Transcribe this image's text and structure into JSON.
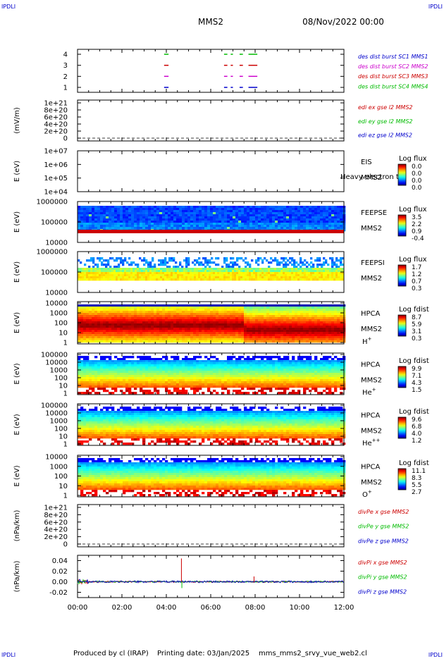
{
  "header": {
    "corner_tl": "IPDLI",
    "corner_tr": "IPDLI",
    "corner_bl": "IPDLI",
    "corner_br": "IPDLI",
    "spacecraft": "MMS2",
    "date": "08/Nov/2022 00:00"
  },
  "footer": {
    "producer": "Produced by cl (IRAP)",
    "print_date": "Printing date: 03/Jan/2025",
    "filename": "mms_mms2_srvy_vue_web2.cl"
  },
  "colors": {
    "blue": "#0000cc",
    "red": "#cc0000",
    "green": "#00bb00",
    "magenta": "#cc00cc"
  },
  "chart_data": [
    {
      "type": "line",
      "id": "burst",
      "ylim": [
        0.5,
        4.5
      ],
      "yticks": [
        "1",
        "2",
        "3",
        "4"
      ],
      "legend": [
        {
          "text": "des dist burst SC1 MMS1",
          "color": "#0000cc"
        },
        {
          "text": "des dist burst SC2 MMS2",
          "color": "#cc00cc"
        },
        {
          "text": "des dist burst SC3 MMS3",
          "color": "#cc0000"
        },
        {
          "text": "des dist burst SC4 MMS4",
          "color": "#00bb00"
        }
      ],
      "intervals_h": [
        [
          3.9,
          4.1
        ],
        [
          6.6,
          6.75
        ],
        [
          6.9,
          7.0
        ],
        [
          7.3,
          7.45
        ],
        [
          7.7,
          8.1
        ]
      ]
    },
    {
      "type": "line",
      "id": "edi",
      "ylabel": "(mV/m)",
      "yticks": [
        "0",
        "2e+20",
        "4e+20",
        "6e+20",
        "8e+20",
        "1e+21"
      ],
      "legend": [
        {
          "text": "edi ex gse l2 MMS2",
          "color": "#cc0000"
        },
        {
          "text": "edi ey gse l2 MMS2",
          "color": "#00bb00"
        },
        {
          "text": "edi ez gse l2 MMS2",
          "color": "#0000cc"
        }
      ]
    },
    {
      "type": "heatmap",
      "id": "eis",
      "ylabel": "E (eV)",
      "yticks": [
        "1e+04",
        "1e+05",
        "1e+06",
        "1e+07"
      ],
      "inst": "EIS",
      "overlay": "Heavy electron to",
      "sc": "MMS2",
      "cbar_title": "Log flux",
      "cbar_ticks": [
        "0.0",
        "0.0",
        "0.0",
        "0.0"
      ]
    },
    {
      "type": "heatmap",
      "id": "feepse",
      "ylabel": "E (eV)",
      "yticks": [
        "10000",
        "100000",
        "1000000"
      ],
      "inst": "FEEPSE",
      "sc": "MMS2",
      "cbar_title": "Log flux",
      "cbar_ticks": [
        "3.5",
        "2.2",
        "0.9",
        "-0.4"
      ]
    },
    {
      "type": "heatmap",
      "id": "feepsi",
      "ylabel": "E (eV)",
      "yticks": [
        "10000",
        "100000",
        "1000000"
      ],
      "inst": "FEEPSI",
      "sc": "MMS2",
      "cbar_title": "Log flux",
      "cbar_ticks": [
        "1.7",
        "1.2",
        "0.7",
        "0.3"
      ]
    },
    {
      "type": "heatmap",
      "id": "hpca_h",
      "ylabel": "E (eV)",
      "yticks": [
        "1",
        "10",
        "100",
        "1000",
        "10000"
      ],
      "inst": "HPCA",
      "sc": "MMS2",
      "species": "H",
      "species_sup": "+",
      "cbar_title": "Log fdist",
      "cbar_ticks": [
        "8.7",
        "5.9",
        "3.1",
        "0.3"
      ]
    },
    {
      "type": "heatmap",
      "id": "hpca_he",
      "ylabel": "E (eV)",
      "yticks": [
        "1",
        "10",
        "100",
        "1000",
        "10000",
        "100000"
      ],
      "inst": "HPCA",
      "sc": "MMS2",
      "species": "He",
      "species_sup": "+",
      "cbar_title": "Log fdist",
      "cbar_ticks": [
        "9.9",
        "7.1",
        "4.3",
        "1.5"
      ]
    },
    {
      "type": "heatmap",
      "id": "hpca_hepp",
      "ylabel": "E (eV)",
      "yticks": [
        "1",
        "10",
        "100",
        "1000",
        "10000",
        "100000"
      ],
      "inst": "HPCA",
      "sc": "MMS2",
      "species": "He",
      "species_sup": "++",
      "cbar_title": "Log fdist",
      "cbar_ticks": [
        "9.6",
        "6.8",
        "4.0",
        "1.2"
      ]
    },
    {
      "type": "heatmap",
      "id": "hpca_o",
      "ylabel": "E (eV)",
      "yticks": [
        "1",
        "10",
        "100",
        "1000",
        "10000"
      ],
      "inst": "HPCA",
      "sc": "MMS2",
      "species": "O",
      "species_sup": "+",
      "cbar_title": "Log fdist",
      "cbar_ticks": [
        "11.1",
        "8.3",
        "5.5",
        "2.7"
      ]
    },
    {
      "type": "line",
      "id": "divpe",
      "ylabel": "(nPa/km)",
      "yticks": [
        "0",
        "2e+20",
        "4e+20",
        "6e+20",
        "8e+20",
        "1e+21"
      ],
      "legend": [
        {
          "text": "divPe x gse MMS2",
          "color": "#cc0000"
        },
        {
          "text": "divPe y gse MMS2",
          "color": "#00bb00"
        },
        {
          "text": "divPe z gse MMS2",
          "color": "#0000cc"
        }
      ]
    },
    {
      "type": "line",
      "id": "divpi",
      "ylabel": "(nPa/km)",
      "ylim": [
        -0.03,
        0.05
      ],
      "yticks": [
        "-0.02",
        "0.00",
        "0.02",
        "0.04"
      ],
      "legend": [
        {
          "text": "divPi x gse MMS2",
          "color": "#cc0000"
        },
        {
          "text": "divPi y gse MMS2",
          "color": "#00bb00"
        },
        {
          "text": "divPi z gse MMS2",
          "color": "#0000cc"
        }
      ],
      "spikes": [
        {
          "t": 4.68,
          "value": 0.044,
          "color": "#cc0000"
        },
        {
          "t": 4.7,
          "value": -0.012,
          "color": "#00bb00"
        },
        {
          "t": 7.95,
          "value": 0.01,
          "color": "#cc0000"
        }
      ]
    }
  ],
  "xaxis": {
    "ticks": [
      "00:00",
      "02:00",
      "04:00",
      "06:00",
      "08:00",
      "10:00",
      "12:00"
    ],
    "xlim_h": [
      0,
      12
    ]
  }
}
